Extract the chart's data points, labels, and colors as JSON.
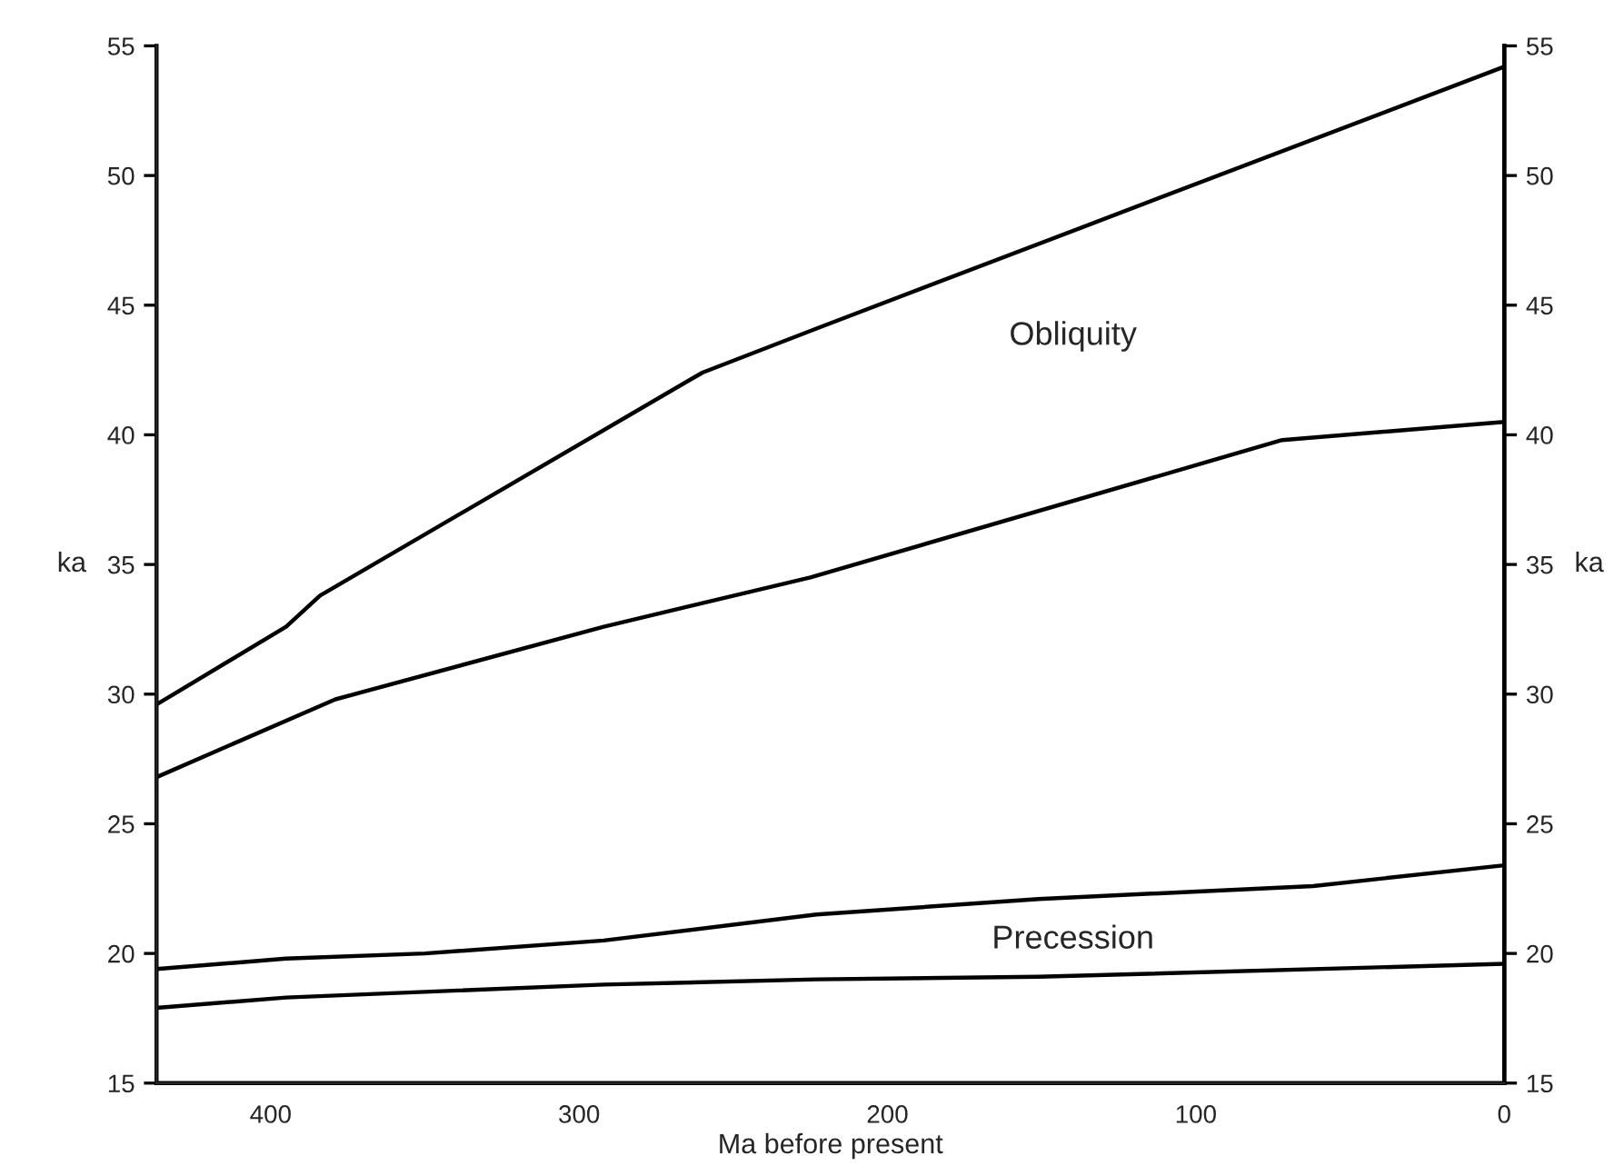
{
  "chart_data": {
    "type": "line",
    "xlabel": "Ma before present",
    "ylabel": "ka",
    "y2label": "ka",
    "xlim": [
      437,
      0
    ],
    "xticks": [
      400,
      300,
      200,
      100,
      0
    ],
    "ylim": [
      15,
      55
    ],
    "yticks": [
      15,
      20,
      25,
      30,
      35,
      40,
      45,
      50,
      55
    ],
    "y2lim": [
      15,
      55
    ],
    "y2ticks": [
      15,
      20,
      25,
      30,
      35,
      40,
      45,
      50,
      55
    ],
    "grid": false,
    "marker": "none",
    "line_style": "solid",
    "series": [
      {
        "color": "#000000",
        "x": [
          437,
          395,
          384,
          260,
          223,
          0
        ],
        "values": [
          29.6,
          32.6,
          33.8,
          42.4,
          44.1,
          54.2
        ]
      },
      {
        "color": "#000000",
        "x": [
          437,
          379,
          292,
          225,
          72,
          0
        ],
        "values": [
          26.8,
          29.8,
          32.6,
          34.5,
          39.8,
          40.5
        ]
      },
      {
        "color": "#000000",
        "x": [
          437,
          395,
          350,
          292,
          223,
          151,
          62,
          0
        ],
        "values": [
          19.4,
          19.8,
          20.0,
          20.5,
          21.5,
          22.1,
          22.6,
          23.4
        ]
      },
      {
        "color": "#000000",
        "x": [
          437,
          395,
          292,
          223,
          151,
          0
        ],
        "values": [
          17.9,
          18.3,
          18.8,
          19.0,
          19.1,
          19.6
        ]
      }
    ],
    "annotations": [
      "Obliquity",
      "Precession"
    ]
  }
}
